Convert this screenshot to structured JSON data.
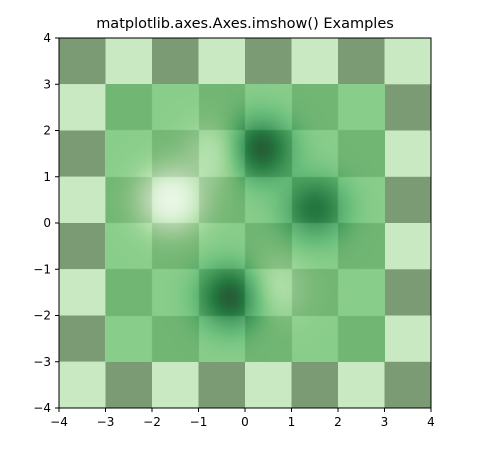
{
  "chart_data": {
    "type": "heatmap",
    "title": "matplotlib.axes.Axes.imshow() Examples",
    "xlabel": "",
    "ylabel": "",
    "xlim": [
      -4,
      4
    ],
    "ylim": [
      -4,
      4
    ],
    "x_ticks": [
      -4,
      -3,
      -2,
      -1,
      0,
      1,
      2,
      3,
      4
    ],
    "y_ticks": [
      -4,
      -3,
      -2,
      -1,
      0,
      1,
      2,
      3,
      4
    ],
    "x_tick_labels": [
      "−4",
      "−3",
      "−2",
      "−1",
      "0",
      "1",
      "2",
      "3",
      "4"
    ],
    "y_tick_labels": [
      "−4",
      "−3",
      "−2",
      "−1",
      "0",
      "1",
      "2",
      "3",
      "4"
    ],
    "colormap": "Greens",
    "grid": false,
    "layers": [
      {
        "name": "checkerboard",
        "cell_size": 1,
        "extent": [
          -4,
          4,
          -4,
          4
        ],
        "alpha": 0.5,
        "pattern": [
          [
            1,
            0,
            1,
            0,
            1,
            0,
            1,
            0
          ],
          [
            0,
            1,
            0,
            1,
            0,
            1,
            0,
            1
          ],
          [
            1,
            0,
            1,
            0,
            1,
            0,
            1,
            0
          ],
          [
            0,
            1,
            0,
            1,
            0,
            1,
            0,
            1
          ],
          [
            1,
            0,
            1,
            0,
            1,
            0,
            1,
            0
          ],
          [
            0,
            1,
            0,
            1,
            0,
            1,
            0,
            1
          ],
          [
            1,
            0,
            1,
            0,
            1,
            0,
            1,
            0
          ],
          [
            0,
            1,
            0,
            1,
            0,
            1,
            0,
            1
          ]
        ]
      },
      {
        "name": "gaussian-field",
        "extent": [
          -3,
          3,
          -3,
          3
        ],
        "alpha": 0.7,
        "bumps": [
          {
            "x": 0.3,
            "y": 1.6,
            "value": 1.0
          },
          {
            "x": -0.3,
            "y": -1.6,
            "value": 1.0
          },
          {
            "x": 1.5,
            "y": 0.3,
            "value": 0.75
          },
          {
            "x": -1.6,
            "y": 0.5,
            "value": -1.0
          },
          {
            "x": -0.6,
            "y": 1.5,
            "value": -0.4
          },
          {
            "x": 0.6,
            "y": -1.4,
            "value": -0.35
          }
        ]
      }
    ],
    "colors": {
      "light": "#c8e9c2",
      "dark": "#7a9b74",
      "spine": "#000000"
    }
  }
}
